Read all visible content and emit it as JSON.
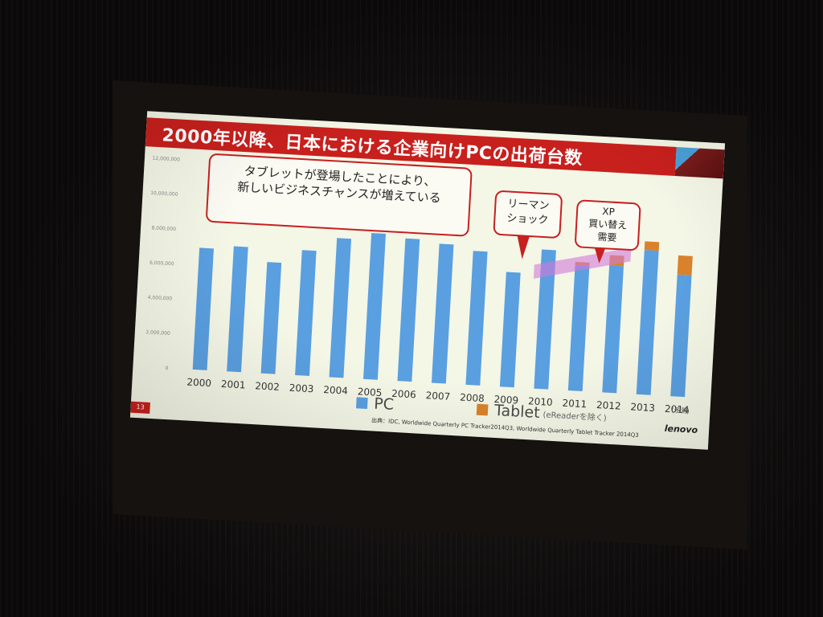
{
  "slide": {
    "title": "2000年以降、日本における企業向けPCの出荷台数",
    "page_number": "13",
    "source_note": "出典：IDC, Worldwide Quarterly PC Tracker2014Q3, Worldwide Quarterly Tablet Tracker 2014Q3",
    "logo_text": "lenovo",
    "estimate_label": "(予測)",
    "callouts": {
      "tablet": [
        "タブレットが登場したことにより、",
        "新しいビジネスチャンスが増えている"
      ],
      "lehman": [
        "リーマン",
        "ショック"
      ],
      "xp": [
        "XP",
        "買い替え",
        "需要"
      ]
    },
    "legend": {
      "pc_label": "PC",
      "tablet_label": "Tablet",
      "tablet_note": "(eReaderを除く)"
    }
  },
  "colors": {
    "pc": "#5a9fe0",
    "tablet": "#d9822b",
    "title_bar": "#c8201d",
    "xp_highlight": "#d07ad8"
  },
  "chart_data": {
    "type": "bar",
    "stacked": true,
    "title": "2000年以降、日本における企業向けPCの出荷台数",
    "categories": [
      "2000",
      "2001",
      "2002",
      "2003",
      "2004",
      "2005",
      "2006",
      "2007",
      "2008",
      "2009",
      "2010",
      "2011",
      "2012",
      "2013",
      "2014"
    ],
    "series": [
      {
        "name": "PC",
        "color": "#5a9fe0",
        "values": [
          7000000,
          7200000,
          6400000,
          7200000,
          8000000,
          8400000,
          8200000,
          8000000,
          7700000,
          6600000,
          8000000,
          7200000,
          7300000,
          8300000,
          7000000
        ]
      },
      {
        "name": "Tablet",
        "color": "#d9822b",
        "values": [
          0,
          0,
          0,
          0,
          0,
          0,
          0,
          0,
          0,
          0,
          0,
          200000,
          600000,
          500000,
          1100000
        ]
      }
    ],
    "y_ticks": [
      "0",
      "2,000,000",
      "4,000,000",
      "6,000,000",
      "8,000,000",
      "10,000,000",
      "12,000,000"
    ],
    "ylim": [
      0,
      12000000
    ],
    "grid": false,
    "legend_position": "bottom"
  }
}
